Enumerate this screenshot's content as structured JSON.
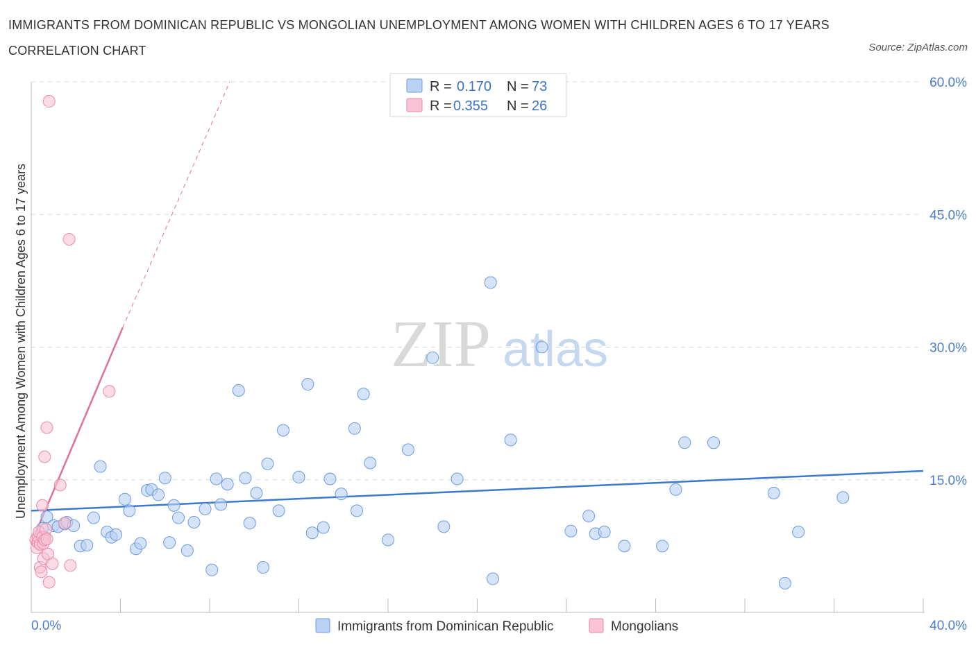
{
  "header": {
    "title": "IMMIGRANTS FROM DOMINICAN REPUBLIC VS MONGOLIAN UNEMPLOYMENT AMONG WOMEN WITH CHILDREN AGES 6 TO 17 YEARS CORRELATION CHART",
    "source": "Source: ZipAtlas.com"
  },
  "watermark": {
    "zip": "ZIP",
    "atlas": "atlas"
  },
  "stats_legend": [
    {
      "r_label": "R =",
      "r_value": "0.170",
      "n_label": "N =",
      "n_value": "73"
    },
    {
      "r_label": "R =",
      "r_value": "0.355",
      "n_label": "N =",
      "n_value": "26"
    }
  ],
  "colors": {
    "blue_fill": "#b9d1f3",
    "blue_stroke": "#6b9be0",
    "blue_line": "#3a78d0",
    "pink_fill": "#f8c3d3",
    "pink_stroke": "#e88aa8",
    "pink_line": "#e0709a",
    "grid": "#d8d8d8",
    "tick_text": "#4a7cc9"
  },
  "chart_data": {
    "type": "scatter",
    "title": "IMMIGRANTS FROM DOMINICAN REPUBLIC VS MONGOLIAN UNEMPLOYMENT AMONG WOMEN WITH CHILDREN AGES 6 TO 17 YEARS CORRELATION CHART",
    "ylabel": "Unemployment Among Women with Children Ages 6 to 17 years",
    "xlabel": "",
    "xlim": [
      0,
      40
    ],
    "ylim": [
      0,
      60
    ],
    "x_tick_labels": [
      "0.0%",
      "40.0%"
    ],
    "y_ticks": [
      15,
      30,
      45,
      60
    ],
    "y_tick_labels": [
      "15.0%",
      "30.0%",
      "45.0%",
      "60.0%"
    ],
    "grid": true,
    "legend_placement": "bottom-center",
    "series": [
      {
        "name": "Immigrants from Dominican Republic",
        "R": 0.17,
        "N": 73,
        "trend": {
          "x": [
            0,
            40
          ],
          "y": [
            11.5,
            16.0
          ],
          "style": "solid"
        },
        "points": [
          [
            0.5,
            9.5
          ],
          [
            0.6,
            8.5
          ],
          [
            0.7,
            10.8
          ],
          [
            1.0,
            9.8
          ],
          [
            1.2,
            9.7
          ],
          [
            1.5,
            10.0
          ],
          [
            1.6,
            10.2
          ],
          [
            1.9,
            9.8
          ],
          [
            2.2,
            7.5
          ],
          [
            2.5,
            7.6
          ],
          [
            2.8,
            10.7
          ],
          [
            3.1,
            16.5
          ],
          [
            3.4,
            9.1
          ],
          [
            3.6,
            8.5
          ],
          [
            3.8,
            8.8
          ],
          [
            4.2,
            12.8
          ],
          [
            4.4,
            11.5
          ],
          [
            4.7,
            7.2
          ],
          [
            4.9,
            7.8
          ],
          [
            5.2,
            13.8
          ],
          [
            5.4,
            13.9
          ],
          [
            5.7,
            13.3
          ],
          [
            6.0,
            15.2
          ],
          [
            6.2,
            7.9
          ],
          [
            6.4,
            12.1
          ],
          [
            6.6,
            10.7
          ],
          [
            7.0,
            7.0
          ],
          [
            7.3,
            10.2
          ],
          [
            7.8,
            11.7
          ],
          [
            8.1,
            4.8
          ],
          [
            8.3,
            15.1
          ],
          [
            8.5,
            12.2
          ],
          [
            8.8,
            14.5
          ],
          [
            9.3,
            25.1
          ],
          [
            9.6,
            15.2
          ],
          [
            9.8,
            10.1
          ],
          [
            10.1,
            13.5
          ],
          [
            10.4,
            5.1
          ],
          [
            10.6,
            16.8
          ],
          [
            11.1,
            11.5
          ],
          [
            11.3,
            20.6
          ],
          [
            12.0,
            15.3
          ],
          [
            12.4,
            25.8
          ],
          [
            12.6,
            9.0
          ],
          [
            13.1,
            9.6
          ],
          [
            13.4,
            15.1
          ],
          [
            13.9,
            13.4
          ],
          [
            14.5,
            20.8
          ],
          [
            14.6,
            11.5
          ],
          [
            14.9,
            24.7
          ],
          [
            15.2,
            16.9
          ],
          [
            16.0,
            8.2
          ],
          [
            16.9,
            18.4
          ],
          [
            18.0,
            28.8
          ],
          [
            18.5,
            9.7
          ],
          [
            19.1,
            15.1
          ],
          [
            20.6,
            37.3
          ],
          [
            20.7,
            3.8
          ],
          [
            21.5,
            19.5
          ],
          [
            22.9,
            30.0
          ],
          [
            24.2,
            9.2
          ],
          [
            25.0,
            10.9
          ],
          [
            25.3,
            8.9
          ],
          [
            25.7,
            9.1
          ],
          [
            26.6,
            7.5
          ],
          [
            28.3,
            7.5
          ],
          [
            28.9,
            13.9
          ],
          [
            29.3,
            19.2
          ],
          [
            30.6,
            19.2
          ],
          [
            33.3,
            13.5
          ],
          [
            33.8,
            3.3
          ],
          [
            34.4,
            9.1
          ],
          [
            36.4,
            13.0
          ]
        ]
      },
      {
        "name": "Mongolians",
        "R": 0.355,
        "N": 26,
        "trend": {
          "x": [
            0,
            4.1
          ],
          "y": [
            7.8,
            32.2
          ],
          "style": "solid",
          "extension_to": [
            8.9,
            60.0
          ],
          "extension_style": "dashed"
        },
        "points": [
          [
            0.2,
            8.2
          ],
          [
            0.25,
            7.3
          ],
          [
            0.3,
            7.9
          ],
          [
            0.3,
            8.6
          ],
          [
            0.35,
            9.1
          ],
          [
            0.4,
            5.1
          ],
          [
            0.4,
            7.7
          ],
          [
            0.45,
            4.6
          ],
          [
            0.5,
            12.1
          ],
          [
            0.5,
            8.5
          ],
          [
            0.55,
            6.1
          ],
          [
            0.55,
            7.8
          ],
          [
            0.6,
            17.6
          ],
          [
            0.6,
            8.2
          ],
          [
            0.65,
            9.4
          ],
          [
            0.7,
            20.9
          ],
          [
            0.7,
            8.3
          ],
          [
            0.75,
            6.6
          ],
          [
            0.8,
            57.8
          ],
          [
            0.8,
            3.4
          ],
          [
            0.95,
            5.5
          ],
          [
            1.3,
            14.4
          ],
          [
            1.5,
            10.1
          ],
          [
            1.7,
            42.2
          ],
          [
            1.75,
            5.3
          ],
          [
            3.5,
            25.0
          ]
        ]
      }
    ]
  },
  "bottom_legend": [
    {
      "label": "Immigrants from Dominican Republic"
    },
    {
      "label": "Mongolians"
    }
  ]
}
